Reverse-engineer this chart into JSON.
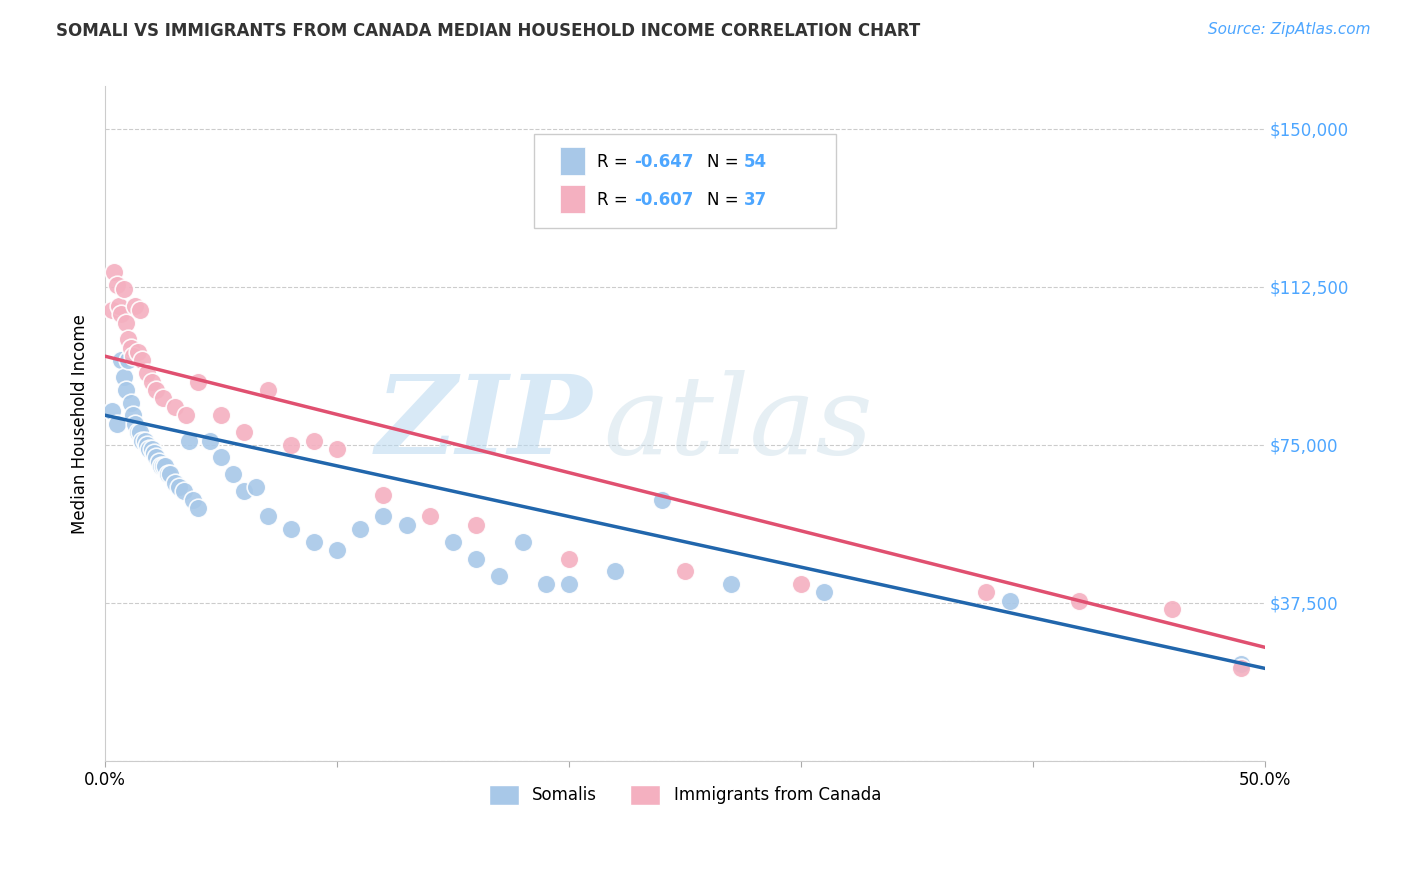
{
  "title": "SOMALI VS IMMIGRANTS FROM CANADA MEDIAN HOUSEHOLD INCOME CORRELATION CHART",
  "source": "Source: ZipAtlas.com",
  "ylabel": "Median Household Income",
  "xlim": [
    0.0,
    0.5
  ],
  "ylim": [
    0,
    160000
  ],
  "ytick_vals": [
    0,
    37500,
    75000,
    112500,
    150000
  ],
  "ytick_labels": [
    "",
    "$37,500",
    "$75,000",
    "$112,500",
    "$150,000"
  ],
  "watermark_zip": "ZIP",
  "watermark_atlas": "atlas",
  "legend_r1": "R = -0.647",
  "legend_n1": "N = 54",
  "legend_r2": "R = -0.607",
  "legend_n2": "N = 37",
  "somali_color": "#a8c8e8",
  "canada_color": "#f4b0c0",
  "somali_line_color": "#2166ac",
  "canada_line_color": "#e05070",
  "background_color": "#ffffff",
  "grid_color": "#cccccc",
  "ytick_color": "#4da6ff",
  "title_color": "#333333",
  "source_color": "#4da6ff",
  "somali_x": [
    0.003,
    0.005,
    0.007,
    0.008,
    0.009,
    0.01,
    0.011,
    0.012,
    0.013,
    0.014,
    0.015,
    0.016,
    0.017,
    0.018,
    0.019,
    0.02,
    0.021,
    0.022,
    0.023,
    0.024,
    0.025,
    0.026,
    0.027,
    0.028,
    0.03,
    0.032,
    0.034,
    0.036,
    0.038,
    0.04,
    0.045,
    0.05,
    0.055,
    0.06,
    0.065,
    0.07,
    0.08,
    0.09,
    0.1,
    0.11,
    0.12,
    0.13,
    0.15,
    0.16,
    0.17,
    0.18,
    0.19,
    0.2,
    0.22,
    0.24,
    0.27,
    0.31,
    0.39,
    0.49
  ],
  "somali_y": [
    83000,
    80000,
    95000,
    91000,
    88000,
    95000,
    85000,
    82000,
    80000,
    78000,
    78000,
    76000,
    76000,
    75000,
    74000,
    74000,
    73000,
    72000,
    71000,
    70000,
    70000,
    70000,
    68000,
    68000,
    66000,
    65000,
    64000,
    76000,
    62000,
    60000,
    76000,
    72000,
    68000,
    64000,
    65000,
    58000,
    55000,
    52000,
    50000,
    55000,
    58000,
    56000,
    52000,
    48000,
    44000,
    52000,
    42000,
    42000,
    45000,
    62000,
    42000,
    40000,
    38000,
    23000
  ],
  "canada_x": [
    0.003,
    0.004,
    0.005,
    0.006,
    0.007,
    0.008,
    0.009,
    0.01,
    0.011,
    0.012,
    0.013,
    0.014,
    0.015,
    0.016,
    0.018,
    0.02,
    0.022,
    0.025,
    0.03,
    0.035,
    0.04,
    0.05,
    0.06,
    0.07,
    0.08,
    0.09,
    0.1,
    0.12,
    0.14,
    0.16,
    0.2,
    0.25,
    0.3,
    0.38,
    0.42,
    0.46,
    0.49
  ],
  "canada_y": [
    107000,
    116000,
    113000,
    108000,
    106000,
    112000,
    104000,
    100000,
    98000,
    96000,
    108000,
    97000,
    107000,
    95000,
    92000,
    90000,
    88000,
    86000,
    84000,
    82000,
    90000,
    82000,
    78000,
    88000,
    75000,
    76000,
    74000,
    63000,
    58000,
    56000,
    48000,
    45000,
    42000,
    40000,
    38000,
    36000,
    22000
  ]
}
